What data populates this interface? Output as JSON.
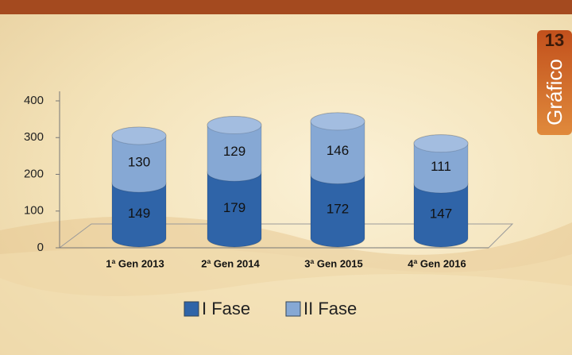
{
  "chart_data": {
    "type": "stacked-cylinder",
    "badge_number": "13",
    "badge_label": "Gráfico",
    "categories": [
      "1ª Gen 2013",
      "2ª Gen 2014",
      "3ª Gen 2015",
      "4ª Gen 2016"
    ],
    "series": [
      {
        "name": "I Fase",
        "color": "#2f64a8",
        "values": [
          149,
          179,
          172,
          147
        ]
      },
      {
        "name": "II Fase",
        "color": "#86a8d4",
        "values": [
          130,
          129,
          146,
          111
        ]
      }
    ],
    "ylim": [
      0,
      400
    ],
    "yticks": [
      0,
      100,
      200,
      300,
      400
    ]
  }
}
